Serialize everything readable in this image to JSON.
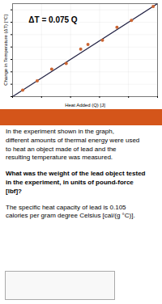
{
  "chart_data": {
    "type": "scatter",
    "xlabel": "Heat Added (Q) [J]",
    "ylabel": "Change in Temperature (ΔT) [°C]",
    "annotations": [
      "ΔT = 0.075 Q"
    ],
    "caption": [
      "In the experiment shown in the graph,\ndifferent amounts of thermal energy were used\nto heat an object made of lead and the\nresulting temperature was measured.",
      "What was the weight of the lead object tested\nin the experiment, in units of pound-force\n[lbf]?",
      "The specific heat capacity of lead is 0.105\ncalories per gram degree Celsius [cal/(g °C)]."
    ],
    "xlim": [
      0,
      1
    ],
    "ylim": [
      0,
      0.075
    ],
    "xticks": [
      0,
      0.2,
      0.4,
      0.6,
      0.8,
      1
    ],
    "yticks": [
      0,
      0.01,
      0.02,
      0.03,
      0.04,
      0.05,
      0.06,
      0.07
    ],
    "grid": true,
    "tick_labels": false,
    "series": [
      {
        "type": "line",
        "color": "#222244",
        "x": [
          0,
          1
        ],
        "values": [
          0,
          0.075
        ]
      },
      {
        "type": "scatter",
        "color": "#cc6633",
        "x": [
          0.07,
          0.17,
          0.27,
          0.37,
          0.47,
          0.52,
          0.62,
          0.72,
          0.82,
          0.97
        ],
        "values": [
          0.00525,
          0.01275,
          0.02225,
          0.02675,
          0.03825,
          0.042,
          0.0455,
          0.056,
          0.0615,
          0.07275
        ]
      }
    ]
  }
}
